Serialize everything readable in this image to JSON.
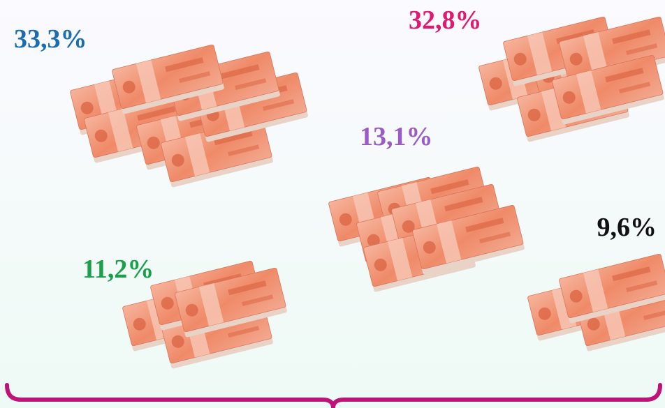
{
  "items": [
    {
      "label": "33,3%",
      "color": "#1a6db0"
    },
    {
      "label": "32,8%",
      "color": "#e2176f"
    },
    {
      "label": "13,1%",
      "color": "#9a5bc6"
    },
    {
      "label": "9,6%",
      "color": "#111111"
    },
    {
      "label": "11,2%",
      "color": "#1aa04a"
    }
  ]
}
